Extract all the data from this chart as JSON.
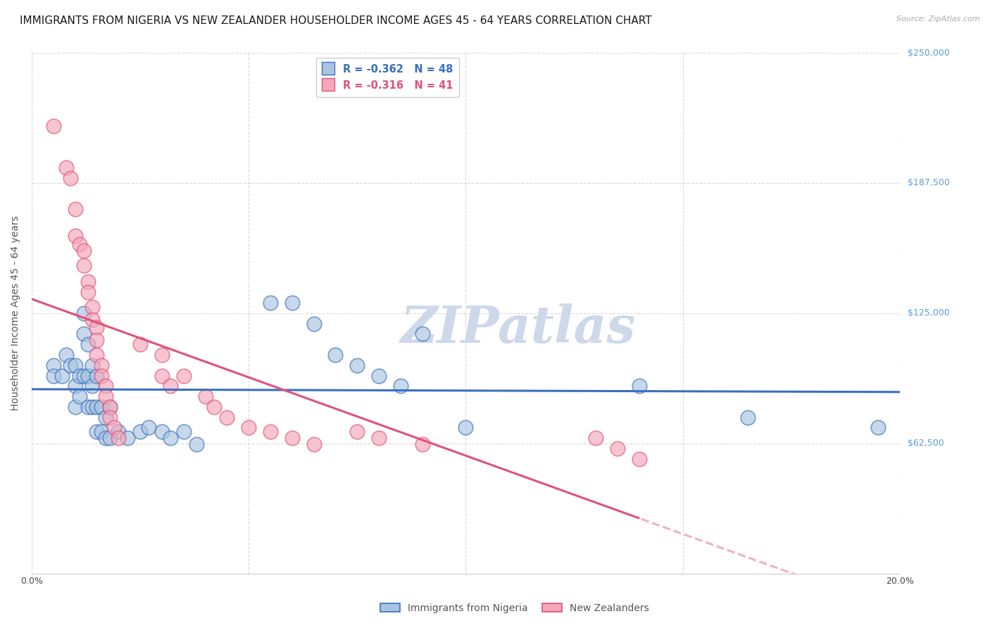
{
  "title": "IMMIGRANTS FROM NIGERIA VS NEW ZEALANDER HOUSEHOLDER INCOME AGES 45 - 64 YEARS CORRELATION CHART",
  "source": "Source: ZipAtlas.com",
  "ylabel_label": "Householder Income Ages 45 - 64 years",
  "x_min": 0.0,
  "x_max": 0.2,
  "y_min": 0,
  "y_max": 250000,
  "y_ticks": [
    62500,
    125000,
    187500,
    250000
  ],
  "y_tick_labels": [
    "$62,500",
    "$125,000",
    "$187,500",
    "$250,000"
  ],
  "x_ticks": [
    0.0,
    0.05,
    0.1,
    0.15,
    0.2
  ],
  "x_tick_labels": [
    "0.0%",
    "",
    "",
    "",
    "20.0%"
  ],
  "legend_blue_r": "R = -0.362",
  "legend_blue_n": "N = 48",
  "legend_pink_r": "R = -0.316",
  "legend_pink_n": "N = 41",
  "legend_label_blue": "Immigrants from Nigeria",
  "legend_label_pink": "New Zealanders",
  "blue_color": "#a8c4e0",
  "pink_color": "#f4a7b9",
  "blue_line_color": "#3a6fbf",
  "pink_line_color": "#e0507a",
  "blue_scatter": [
    [
      0.005,
      100000
    ],
    [
      0.005,
      95000
    ],
    [
      0.007,
      95000
    ],
    [
      0.008,
      105000
    ],
    [
      0.009,
      100000
    ],
    [
      0.01,
      100000
    ],
    [
      0.01,
      90000
    ],
    [
      0.01,
      80000
    ],
    [
      0.011,
      95000
    ],
    [
      0.011,
      85000
    ],
    [
      0.012,
      125000
    ],
    [
      0.012,
      115000
    ],
    [
      0.012,
      95000
    ],
    [
      0.013,
      110000
    ],
    [
      0.013,
      95000
    ],
    [
      0.013,
      80000
    ],
    [
      0.014,
      100000
    ],
    [
      0.014,
      90000
    ],
    [
      0.014,
      80000
    ],
    [
      0.015,
      95000
    ],
    [
      0.015,
      80000
    ],
    [
      0.015,
      68000
    ],
    [
      0.016,
      80000
    ],
    [
      0.016,
      68000
    ],
    [
      0.017,
      75000
    ],
    [
      0.017,
      65000
    ],
    [
      0.018,
      80000
    ],
    [
      0.018,
      65000
    ],
    [
      0.02,
      68000
    ],
    [
      0.022,
      65000
    ],
    [
      0.025,
      68000
    ],
    [
      0.027,
      70000
    ],
    [
      0.03,
      68000
    ],
    [
      0.032,
      65000
    ],
    [
      0.035,
      68000
    ],
    [
      0.038,
      62000
    ],
    [
      0.055,
      130000
    ],
    [
      0.06,
      130000
    ],
    [
      0.065,
      120000
    ],
    [
      0.07,
      105000
    ],
    [
      0.075,
      100000
    ],
    [
      0.08,
      95000
    ],
    [
      0.085,
      90000
    ],
    [
      0.09,
      115000
    ],
    [
      0.1,
      70000
    ],
    [
      0.14,
      90000
    ],
    [
      0.165,
      75000
    ],
    [
      0.195,
      70000
    ]
  ],
  "pink_scatter": [
    [
      0.005,
      215000
    ],
    [
      0.008,
      195000
    ],
    [
      0.009,
      190000
    ],
    [
      0.01,
      175000
    ],
    [
      0.01,
      162000
    ],
    [
      0.011,
      158000
    ],
    [
      0.012,
      155000
    ],
    [
      0.012,
      148000
    ],
    [
      0.013,
      140000
    ],
    [
      0.013,
      135000
    ],
    [
      0.014,
      128000
    ],
    [
      0.014,
      122000
    ],
    [
      0.015,
      118000
    ],
    [
      0.015,
      112000
    ],
    [
      0.015,
      105000
    ],
    [
      0.016,
      100000
    ],
    [
      0.016,
      95000
    ],
    [
      0.017,
      90000
    ],
    [
      0.017,
      85000
    ],
    [
      0.018,
      80000
    ],
    [
      0.018,
      75000
    ],
    [
      0.019,
      70000
    ],
    [
      0.02,
      65000
    ],
    [
      0.025,
      110000
    ],
    [
      0.03,
      105000
    ],
    [
      0.03,
      95000
    ],
    [
      0.032,
      90000
    ],
    [
      0.035,
      95000
    ],
    [
      0.04,
      85000
    ],
    [
      0.042,
      80000
    ],
    [
      0.045,
      75000
    ],
    [
      0.05,
      70000
    ],
    [
      0.055,
      68000
    ],
    [
      0.06,
      65000
    ],
    [
      0.065,
      62000
    ],
    [
      0.075,
      68000
    ],
    [
      0.08,
      65000
    ],
    [
      0.09,
      62000
    ],
    [
      0.13,
      65000
    ],
    [
      0.135,
      60000
    ],
    [
      0.14,
      55000
    ]
  ],
  "background_color": "#ffffff",
  "grid_color": "#d8d8d8",
  "title_fontsize": 11,
  "axis_label_fontsize": 10,
  "tick_fontsize": 9,
  "watermark_text": "ZIPatlas",
  "watermark_color": "#cdd8ea"
}
